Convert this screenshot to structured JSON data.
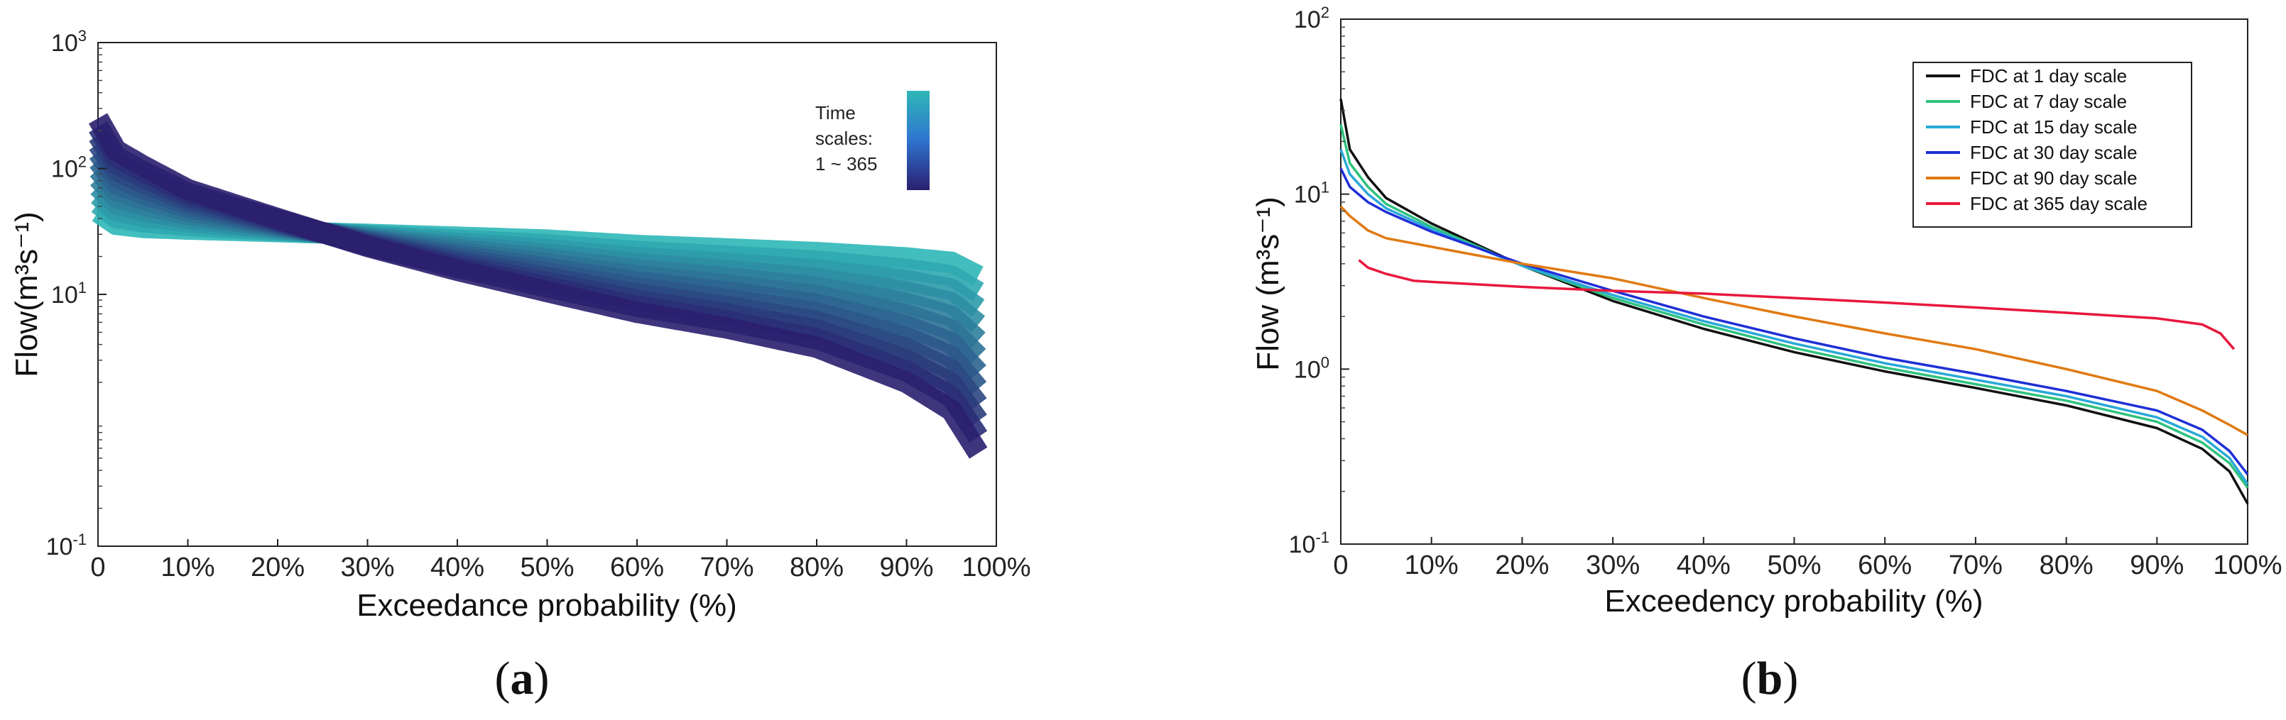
{
  "chart_data": [
    {
      "panel": "a",
      "type": "area",
      "xlabel": "Exceedance probability (%)",
      "ylabel": "Flow(m³s⁻¹)",
      "yscale": "log",
      "ylim": [
        0.1,
        1000
      ],
      "xlim": [
        0,
        100
      ],
      "xticks": [
        "0",
        "10%",
        "20%",
        "30%",
        "40%",
        "50%",
        "60%",
        "70%",
        "80%",
        "90%",
        "100%"
      ],
      "yticks": [
        {
          "value": 0.1,
          "base": "10",
          "exp": "-1"
        },
        {
          "value": 10,
          "base": "10",
          "exp": "1"
        },
        {
          "value": 100,
          "base": "10",
          "exp": "2"
        },
        {
          "value": 1000,
          "base": "10",
          "exp": "3"
        }
      ],
      "colorbar": {
        "title_lines": [
          "Time",
          "scales:",
          "1 ~ 365"
        ],
        "from_color": "#2a1f6e",
        "to_color": "#2fb7b7"
      },
      "band": {
        "series_count": 12,
        "x": [
          0,
          2,
          5,
          10,
          20,
          30,
          40,
          50,
          60,
          70,
          80,
          90,
          95,
          98
        ],
        "scale_1_day": [
          250,
          140,
          105,
          68,
          40,
          24,
          15.5,
          10.5,
          7.2,
          5.4,
          3.8,
          2.0,
          1.2,
          0.55
        ],
        "scale_365_day": [
          45,
          36,
          34,
          33,
          31.5,
          30,
          28.5,
          27,
          24.5,
          23,
          21.5,
          19.5,
          18,
          14
        ]
      },
      "panel_caption_open": "(",
      "panel_caption_letter": "a",
      "panel_caption_close": ")"
    },
    {
      "panel": "b",
      "type": "line",
      "xlabel": "Exceedency probability (%)",
      "ylabel": "Flow (m³s⁻¹)",
      "yscale": "log",
      "ylim": [
        0.1,
        100
      ],
      "xlim": [
        0,
        100
      ],
      "xticks": [
        "0",
        "10%",
        "20%",
        "30%",
        "40%",
        "50%",
        "60%",
        "70%",
        "80%",
        "90%",
        "100%"
      ],
      "yticks": [
        {
          "value": 0.1,
          "base": "10",
          "exp": "-1"
        },
        {
          "value": 1,
          "base": "10",
          "exp": "0"
        },
        {
          "value": 10,
          "base": "10",
          "exp": "1"
        },
        {
          "value": 100,
          "base": "10",
          "exp": "2"
        }
      ],
      "series": [
        {
          "name": "FDC at 1 day scale",
          "color": "#111111",
          "x": [
            0,
            1,
            3,
            5,
            10,
            20,
            30,
            40,
            50,
            60,
            70,
            80,
            90,
            95,
            98,
            100
          ],
          "values": [
            35,
            18,
            12.5,
            9.5,
            6.8,
            3.9,
            2.45,
            1.7,
            1.25,
            0.97,
            0.78,
            0.62,
            0.46,
            0.35,
            0.26,
            0.17
          ]
        },
        {
          "name": "FDC at 7 day scale",
          "color": "#2ec27e",
          "x": [
            0,
            1,
            3,
            5,
            10,
            20,
            30,
            40,
            50,
            60,
            70,
            80,
            90,
            95,
            98,
            100
          ],
          "values": [
            25,
            15,
            11,
            8.8,
            6.5,
            3.9,
            2.55,
            1.8,
            1.32,
            1.02,
            0.82,
            0.66,
            0.5,
            0.38,
            0.29,
            0.21
          ]
        },
        {
          "name": "FDC at 15 day scale",
          "color": "#29a8d8",
          "x": [
            0,
            1,
            3,
            5,
            10,
            20,
            30,
            40,
            50,
            60,
            70,
            80,
            90,
            95,
            98,
            100
          ],
          "values": [
            18,
            13,
            10,
            8.3,
            6.3,
            3.9,
            2.65,
            1.88,
            1.4,
            1.08,
            0.87,
            0.7,
            0.53,
            0.41,
            0.31,
            0.22
          ]
        },
        {
          "name": "FDC at 30 day scale",
          "color": "#1f2fd6",
          "x": [
            0,
            1,
            3,
            5,
            10,
            20,
            30,
            40,
            50,
            60,
            70,
            80,
            90,
            95,
            98,
            100
          ],
          "values": [
            14,
            11,
            9,
            7.9,
            6.1,
            4.0,
            2.8,
            2.0,
            1.5,
            1.16,
            0.94,
            0.75,
            0.58,
            0.45,
            0.34,
            0.25
          ]
        },
        {
          "name": "FDC at 90 day scale",
          "color": "#e07a12",
          "x": [
            0,
            1,
            3,
            5,
            10,
            20,
            30,
            40,
            50,
            60,
            70,
            80,
            90,
            95,
            98,
            100
          ],
          "values": [
            8.5,
            7.5,
            6.2,
            5.6,
            5.0,
            4.0,
            3.3,
            2.55,
            2.0,
            1.6,
            1.3,
            1.0,
            0.75,
            0.58,
            0.48,
            0.42
          ]
        },
        {
          "name": "FDC at 365 day scale",
          "color": "#e8183c",
          "x": [
            2,
            3,
            5,
            8,
            10,
            20,
            30,
            40,
            50,
            60,
            70,
            80,
            90,
            95,
            97,
            98.5
          ],
          "values": [
            4.2,
            3.8,
            3.5,
            3.2,
            3.15,
            2.95,
            2.8,
            2.7,
            2.55,
            2.4,
            2.25,
            2.1,
            1.95,
            1.8,
            1.6,
            1.3
          ]
        }
      ],
      "panel_caption_open": "(",
      "panel_caption_letter": "b",
      "panel_caption_close": ")"
    }
  ]
}
